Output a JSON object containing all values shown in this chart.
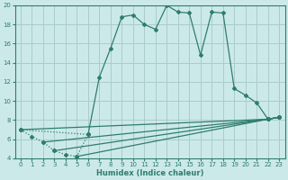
{
  "xlabel": "Humidex (Indice chaleur)",
  "bg_color": "#cce9e9",
  "grid_color": "#aacccc",
  "line_color": "#2e7d6e",
  "xlim": [
    -0.5,
    23.5
  ],
  "ylim": [
    4,
    20
  ],
  "xticks": [
    0,
    1,
    2,
    3,
    4,
    5,
    6,
    7,
    8,
    9,
    10,
    11,
    12,
    13,
    14,
    15,
    16,
    17,
    18,
    19,
    20,
    21,
    22,
    23
  ],
  "yticks": [
    4,
    6,
    8,
    10,
    12,
    14,
    16,
    18,
    20
  ],
  "main_x": [
    0,
    1,
    2,
    3,
    4,
    5,
    6,
    7,
    8,
    9,
    10,
    11,
    12,
    13,
    14,
    15,
    16,
    17,
    18,
    19,
    20,
    21,
    22,
    23
  ],
  "main_y": [
    7.0,
    6.3,
    5.7,
    4.8,
    4.4,
    4.2,
    6.5,
    12.5,
    15.5,
    18.8,
    19.0,
    18.0,
    17.5,
    20.0,
    19.3,
    19.2,
    14.8,
    19.3,
    19.2,
    11.3,
    10.6,
    9.8,
    8.1,
    8.3
  ],
  "line1_x": [
    0,
    22,
    23
  ],
  "line1_y": [
    7.0,
    8.1,
    8.3
  ],
  "line2_x": [
    2,
    22,
    23
  ],
  "line2_y": [
    5.7,
    8.1,
    8.3
  ],
  "line3_x": [
    3,
    22,
    23
  ],
  "line3_y": [
    4.8,
    8.1,
    8.3
  ],
  "line4_x": [
    5,
    22,
    23
  ],
  "line4_y": [
    4.2,
    8.1,
    8.3
  ],
  "dot_x": [
    1,
    2,
    3,
    4,
    5,
    6
  ],
  "dot_y": [
    6.3,
    5.7,
    4.8,
    4.4,
    4.2,
    6.5
  ]
}
